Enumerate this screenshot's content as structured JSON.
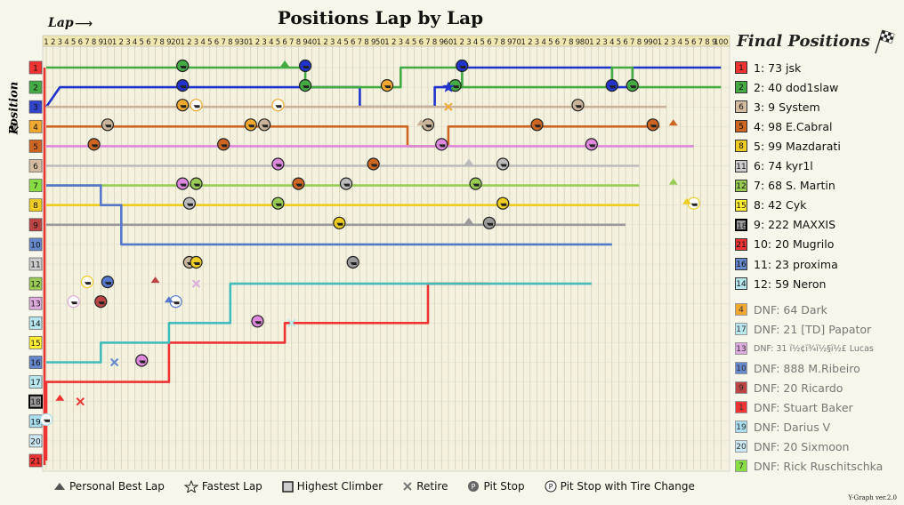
{
  "chart_data": {
    "type": "line",
    "title": "Positions Lap by Lap",
    "xlabel": "Lap",
    "ylabel": "Position",
    "x_range": [
      1,
      100
    ],
    "y_range": [
      1,
      21
    ],
    "final_title": "Final Positions",
    "version": "Y-Graph ver.2.0",
    "series": [
      {
        "name": "73 jsk",
        "color": "#2233cc",
        "final": "1",
        "label": "1: 73 jsk",
        "label_color": "#2233cc",
        "fin": 1,
        "end": 100,
        "path": [
          [
            1,
            3
          ],
          [
            3,
            2
          ],
          [
            47,
            2
          ],
          [
            47,
            3
          ],
          [
            58,
            3
          ],
          [
            58,
            2
          ],
          [
            62,
            2
          ],
          [
            62,
            1
          ],
          [
            84,
            1
          ],
          [
            84,
            2
          ],
          [
            87,
            2
          ],
          [
            87,
            1
          ],
          [
            100,
            1
          ]
        ]
      },
      {
        "name": "40 dod1slaw",
        "color": "#44aa44",
        "final": "2",
        "label": "2: 40 dod1slaw",
        "label_color": "#44aa44",
        "fin": 2,
        "end": 100,
        "path": [
          [
            1,
            1
          ],
          [
            39,
            1
          ],
          [
            39,
            2
          ],
          [
            53,
            2
          ],
          [
            53,
            1
          ],
          [
            58,
            1
          ],
          [
            58,
            1
          ],
          [
            62,
            1
          ],
          [
            62,
            2
          ],
          [
            84,
            2
          ],
          [
            84,
            1
          ],
          [
            87,
            1
          ],
          [
            87,
            2
          ],
          [
            100,
            2
          ]
        ]
      },
      {
        "name": "9 System",
        "color": "#c9b49a",
        "final": "6",
        "label": "3: 9 System",
        "label_color": "#bb9977",
        "fin": 3,
        "end": 92,
        "path": [
          [
            1,
            3
          ],
          [
            92,
            3
          ]
        ]
      },
      {
        "name": "98 E.Cabral",
        "color": "#cc6622",
        "final": "5",
        "label": "4: 98 E.Cabral",
        "label_color": "#cc6622",
        "fin": 4,
        "end": 91,
        "path": [
          [
            1,
            4
          ],
          [
            54,
            4
          ],
          [
            54,
            5
          ],
          [
            60,
            5
          ],
          [
            60,
            4
          ],
          [
            91,
            4
          ]
        ]
      },
      {
        "name": "99 Mazdarati",
        "color": "#dd88dd",
        "final": "8",
        "label": "5: 99 Mazdarati",
        "label_color": "#cc66cc",
        "fin": 5,
        "end": 96,
        "path": [
          [
            1,
            5
          ],
          [
            60,
            5
          ],
          [
            60,
            5
          ],
          [
            96,
            5
          ]
        ]
      },
      {
        "name": "74 kyr1l",
        "color": "#bbbbbb",
        "final": "11",
        "label": "6: 74 kyr1l",
        "label_color": "#aaaaaa",
        "fin": 6,
        "end": 88,
        "path": [
          [
            1,
            6
          ],
          [
            88,
            6
          ]
        ]
      },
      {
        "name": "68 S. Martin",
        "color": "#99cc55",
        "final": "12",
        "label": "7: 68 S. Martin",
        "label_color": "#88bb44",
        "fin": 7,
        "end": 88,
        "path": [
          [
            1,
            7
          ],
          [
            88,
            7
          ]
        ]
      },
      {
        "name": "42 Cyk",
        "color": "#eecc22",
        "final": "15",
        "label": "8: 42 Cyk",
        "label_color": "#ddbb00",
        "fin": 8,
        "end": 88,
        "path": [
          [
            1,
            8
          ],
          [
            88,
            8
          ]
        ]
      },
      {
        "name": "222 MAXXIS",
        "color": "#999999",
        "final": "18",
        "label": "9: 222 MAXXIS",
        "label_color": "#666666",
        "fin": 9,
        "end": 86,
        "path": [
          [
            1,
            9
          ],
          [
            86,
            9
          ]
        ]
      },
      {
        "name": "20 Mugrilo",
        "color": "#ee3333",
        "final": "21",
        "label": "10: 20 Mugrilo",
        "label_color": "#ee3333",
        "fin": 10,
        "end": 66,
        "path": [
          [
            1,
            21
          ],
          [
            1,
            21
          ],
          [
            1,
            17
          ],
          [
            19,
            17
          ],
          [
            19,
            15
          ],
          [
            36,
            15
          ],
          [
            36,
            14
          ],
          [
            57,
            14
          ],
          [
            57,
            12
          ],
          [
            66,
            12
          ]
        ]
      },
      {
        "name": "23 proxima",
        "color": "#5577cc",
        "final": "16",
        "label": "11: 23 proxima",
        "label_color": "#5577cc",
        "fin": 11,
        "end": 84,
        "path": [
          [
            1,
            7
          ],
          [
            9,
            7
          ],
          [
            9,
            8
          ],
          [
            12,
            8
          ],
          [
            12,
            10
          ],
          [
            84,
            10
          ]
        ]
      },
      {
        "name": "59 Neron",
        "color": "#44bbbb",
        "final": "14",
        "label": "12: 59 Neron",
        "label_color": "#33aaaa",
        "fin": 12,
        "end": 81,
        "path": [
          [
            1,
            16
          ],
          [
            9,
            16
          ],
          [
            9,
            15
          ],
          [
            19,
            15
          ],
          [
            19,
            14
          ],
          [
            28,
            14
          ],
          [
            28,
            12
          ],
          [
            81,
            12
          ]
        ]
      }
    ],
    "dnf": [
      {
        "label": "DNF: 64 Dark",
        "badge": "4",
        "color": "#f0a830"
      },
      {
        "label": "DNF: 21 [TD] Papator",
        "badge": "17",
        "color": "#b8e8ee"
      },
      {
        "label": "DNF: 31 ï½¢ï¾ï½§ï½£ Lucas",
        "badge": "13",
        "color": "#ddaadd",
        "small": true
      },
      {
        "label": "DNF: 888 M.Ribeiro",
        "badge": "10",
        "color": "#6688cc"
      },
      {
        "label": "DNF: 20 Ricardo",
        "badge": "9",
        "color": "#bb4444"
      },
      {
        "label": "DNF: Stuart Baker",
        "badge": "1",
        "color": "#ee3333"
      },
      {
        "label": "DNF: Darius V",
        "badge": "19",
        "color": "#aaddee"
      },
      {
        "label": "DNF: 20 Sixmoon",
        "badge": "20",
        "color": "#cce8f4"
      },
      {
        "label": "DNF: Rick Ruschitschka",
        "badge": "7",
        "color": "#88dd44"
      }
    ],
    "lap_ticks": [
      "1",
      "2",
      "3",
      "4",
      "5",
      "6",
      "7",
      "8",
      "9",
      "10",
      "1",
      "2",
      "3",
      "4",
      "5",
      "6",
      "7",
      "8",
      "9",
      "20",
      "1",
      "2",
      "3",
      "4",
      "5",
      "6",
      "7",
      "8",
      "9",
      "30",
      "1",
      "2",
      "3",
      "4",
      "5",
      "6",
      "7",
      "8",
      "9",
      "40",
      "1",
      "2",
      "3",
      "4",
      "5",
      "6",
      "7",
      "8",
      "9",
      "50",
      "1",
      "2",
      "3",
      "4",
      "5",
      "6",
      "7",
      "8",
      "9",
      "60",
      "1",
      "2",
      "3",
      "4",
      "5",
      "6",
      "7",
      "8",
      "9",
      "70",
      "1",
      "2",
      "3",
      "4",
      "5",
      "6",
      "7",
      "8",
      "9",
      "80",
      "1",
      "2",
      "3",
      "4",
      "5",
      "6",
      "7",
      "8",
      "9",
      "90",
      "1",
      "2",
      "3",
      "4",
      "5",
      "6",
      "7",
      "8",
      "9",
      "100"
    ],
    "position_badges": [
      {
        "n": "1",
        "color": "#ee3333"
      },
      {
        "n": "2",
        "color": "#44aa44"
      },
      {
        "n": "3",
        "color": "#3344cc"
      },
      {
        "n": "4",
        "color": "#f0a830"
      },
      {
        "n": "5",
        "color": "#cc6622"
      },
      {
        "n": "6",
        "color": "#d4bca0"
      },
      {
        "n": "7",
        "color": "#88dd44"
      },
      {
        "n": "8",
        "color": "#eecc22"
      },
      {
        "n": "9",
        "color": "#bb4444"
      },
      {
        "n": "10",
        "color": "#6688cc"
      },
      {
        "n": "11",
        "color": "#cccccc"
      },
      {
        "n": "12",
        "color": "#99cc55"
      },
      {
        "n": "13",
        "color": "#ddaadd"
      },
      {
        "n": "14",
        "color": "#b8e8ee"
      },
      {
        "n": "15",
        "color": "#ffee33"
      },
      {
        "n": "16",
        "color": "#6688cc"
      },
      {
        "n": "17",
        "color": "#b8e8ee"
      },
      {
        "n": "18",
        "color": "#999999"
      },
      {
        "n": "19",
        "color": "#aaddee"
      },
      {
        "n": "20",
        "color": "#cce8f4"
      },
      {
        "n": "21",
        "color": "#ee3333"
      }
    ],
    "pit_stops": [
      {
        "lap": 21,
        "pos": 1,
        "color": "#44aa44"
      },
      {
        "lap": 39,
        "pos": 1,
        "color": "#2233cc"
      },
      {
        "lap": 62,
        "pos": 1,
        "color": "#2233cc"
      },
      {
        "lap": 21,
        "pos": 2,
        "color": "#2233cc"
      },
      {
        "lap": 39,
        "pos": 2,
        "color": "#44aa44"
      },
      {
        "lap": 51,
        "pos": 2,
        "color": "#f0a830"
      },
      {
        "lap": 61,
        "pos": 2,
        "color": "#44aa44"
      },
      {
        "lap": 84,
        "pos": 2,
        "color": "#2233cc"
      },
      {
        "lap": 87,
        "pos": 2,
        "color": "#44aa44"
      },
      {
        "lap": 21,
        "pos": 3,
        "color": "#f0a830"
      },
      {
        "lap": 79,
        "pos": 3,
        "color": "#c9b49a"
      },
      {
        "lap": 10,
        "pos": 4,
        "color": "#c9b49a"
      },
      {
        "lap": 31,
        "pos": 4,
        "color": "#f0a830"
      },
      {
        "lap": 33,
        "pos": 4,
        "color": "#c9b49a"
      },
      {
        "lap": 57,
        "pos": 4,
        "color": "#c9b49a"
      },
      {
        "lap": 73,
        "pos": 4,
        "color": "#cc6622"
      },
      {
        "lap": 90,
        "pos": 4,
        "color": "#cc6622"
      },
      {
        "lap": 8,
        "pos": 5,
        "color": "#cc6622"
      },
      {
        "lap": 27,
        "pos": 5,
        "color": "#cc6622"
      },
      {
        "lap": 59,
        "pos": 5,
        "color": "#dd88dd"
      },
      {
        "lap": 81,
        "pos": 5,
        "color": "#dd88dd"
      },
      {
        "lap": 35,
        "pos": 6,
        "color": "#dd88dd"
      },
      {
        "lap": 49,
        "pos": 6,
        "color": "#cc6622"
      },
      {
        "lap": 68,
        "pos": 6,
        "color": "#bbbbbb"
      },
      {
        "lap": 21,
        "pos": 7,
        "color": "#dd88dd"
      },
      {
        "lap": 23,
        "pos": 7,
        "color": "#99cc55"
      },
      {
        "lap": 38,
        "pos": 7,
        "color": "#cc6622"
      },
      {
        "lap": 45,
        "pos": 7,
        "color": "#bbbbbb"
      },
      {
        "lap": 64,
        "pos": 7,
        "color": "#99cc55"
      },
      {
        "lap": 22,
        "pos": 8,
        "color": "#bbbbbb"
      },
      {
        "lap": 35,
        "pos": 8,
        "color": "#99cc55"
      },
      {
        "lap": 68,
        "pos": 8,
        "color": "#eecc22"
      },
      {
        "lap": 44,
        "pos": 9,
        "color": "#eecc22"
      },
      {
        "lap": 66,
        "pos": 9,
        "color": "#999999"
      },
      {
        "lap": 22,
        "pos": 11,
        "color": "#c9b49a"
      },
      {
        "lap": 23,
        "pos": 11,
        "color": "#eecc22"
      },
      {
        "lap": 46,
        "pos": 11,
        "color": "#999999"
      },
      {
        "lap": 10,
        "pos": 12,
        "color": "#5577cc"
      },
      {
        "lap": 9,
        "pos": 13,
        "color": "#bb4444"
      },
      {
        "lap": 32,
        "pos": 14,
        "color": "#dd88dd"
      },
      {
        "lap": 15,
        "pos": 16,
        "color": "#dd88dd"
      }
    ],
    "tire_stops": [
      {
        "lap": 23,
        "pos": 3,
        "color": "#f0a830"
      },
      {
        "lap": 35,
        "pos": 3,
        "color": "#f0a830"
      },
      {
        "lap": 96,
        "pos": 8,
        "color": "#eecc22"
      },
      {
        "lap": 7,
        "pos": 12,
        "color": "#eecc22"
      },
      {
        "lap": 20,
        "pos": 13,
        "color": "#5577cc"
      },
      {
        "lap": 5,
        "pos": 13,
        "color": "#ddaadd"
      },
      {
        "lap": 1,
        "pos": 19,
        "color": "#aaddee"
      }
    ],
    "pb_laps": [
      {
        "lap": 36,
        "pos": 1,
        "color": "#44aa44"
      },
      {
        "lap": 56,
        "pos": 4,
        "color": "#c9b49a"
      },
      {
        "lap": 93,
        "pos": 4,
        "color": "#cc6622"
      },
      {
        "lap": 63,
        "pos": 6,
        "color": "#bbbbbb"
      },
      {
        "lap": 93,
        "pos": 7,
        "color": "#99cc55"
      },
      {
        "lap": 95,
        "pos": 8,
        "color": "#eecc22"
      },
      {
        "lap": 63,
        "pos": 9,
        "color": "#999999"
      },
      {
        "lap": 17,
        "pos": 12,
        "color": "#bb4444"
      },
      {
        "lap": 19,
        "pos": 13,
        "color": "#5577cc"
      },
      {
        "lap": 3,
        "pos": 18,
        "color": "#ee3333"
      }
    ],
    "fastest_lap": {
      "lap": 60,
      "pos": 2,
      "color": "#2233cc"
    },
    "retires": [
      {
        "lap": 60,
        "pos": 3,
        "color": "#f0a830"
      },
      {
        "lap": 6,
        "pos": 18,
        "color": "#ee3333"
      },
      {
        "lap": 37,
        "pos": 14,
        "color": "#b8e8ee"
      },
      {
        "lap": 23,
        "pos": 12,
        "color": "#ddaadd"
      },
      {
        "lap": 11,
        "pos": 16,
        "color": "#6688cc"
      }
    ]
  },
  "legend": {
    "pb": "Personal Best Lap",
    "fastest": "Fastest Lap",
    "climber": "Highest Climber",
    "retire": "Retire",
    "pit": "Pit Stop",
    "tire": "Pit Stop with Tire Change"
  }
}
